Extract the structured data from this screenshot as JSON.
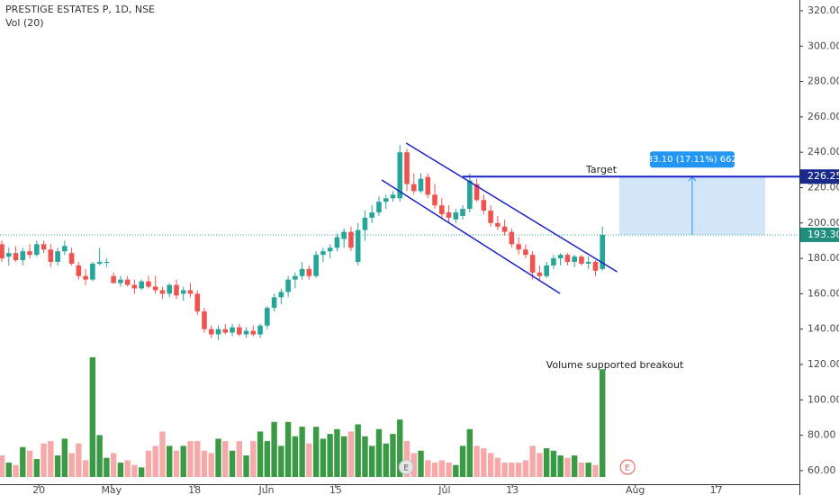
{
  "chart_data": {
    "type": "candlestick",
    "title": "PRESTIGE ESTATES P, 1D, NSE",
    "subtitle": "Vol (20)",
    "up_color": "#26a69a",
    "down_color": "#ef5350",
    "volume_up_color": "#3b9b45",
    "volume_down_color": "#f5a9a9",
    "open": [
      188,
      181,
      183,
      179,
      184,
      182,
      188,
      185,
      178,
      184,
      183,
      176,
      170,
      168,
      177,
      178,
      170,
      166,
      168,
      165,
      163,
      167,
      164,
      162,
      160,
      165,
      160,
      162,
      160,
      150,
      140,
      137,
      140,
      138,
      141,
      137,
      139,
      137,
      142,
      152,
      158,
      161,
      168,
      170,
      174,
      170,
      182,
      184,
      186,
      191,
      195,
      178,
      196,
      203,
      206,
      212,
      214,
      214,
      240,
      222,
      218,
      226,
      216,
      210,
      206,
      202,
      204,
      208,
      222,
      213,
      207,
      200,
      198,
      195,
      188,
      185,
      182,
      172,
      170,
      176,
      180,
      182,
      178,
      181,
      177,
      178,
      174
    ],
    "high": [
      190,
      186,
      187,
      186,
      188,
      190,
      190,
      188,
      186,
      190,
      186,
      178,
      174,
      178,
      186,
      180,
      172,
      170,
      170,
      168,
      168,
      170,
      170,
      164,
      166,
      168,
      164,
      166,
      162,
      152,
      142,
      142,
      143,
      143,
      143,
      141,
      142,
      143,
      153,
      160,
      163,
      170,
      172,
      178,
      176,
      184,
      186,
      188,
      194,
      197,
      198,
      200,
      207,
      210,
      215,
      216,
      218,
      244,
      242,
      228,
      228,
      228,
      222,
      214,
      210,
      208,
      210,
      228,
      225,
      216,
      210,
      204,
      202,
      197,
      192,
      188,
      184,
      176,
      178,
      182,
      183,
      183,
      182,
      182,
      181,
      179,
      198
    ],
    "low": [
      178,
      176,
      178,
      176,
      180,
      181,
      183,
      175,
      176,
      182,
      176,
      168,
      165,
      167,
      176,
      175,
      166,
      164,
      164,
      160,
      162,
      163,
      160,
      157,
      158,
      157,
      156,
      158,
      148,
      138,
      135,
      134,
      137,
      136,
      136,
      135,
      136,
      135,
      140,
      150,
      154,
      158,
      163,
      168,
      168,
      169,
      178,
      180,
      184,
      186,
      184,
      176,
      190,
      200,
      204,
      208,
      212,
      212,
      218,
      216,
      217,
      214,
      208,
      203,
      200,
      200,
      202,
      206,
      212,
      205,
      198,
      196,
      193,
      186,
      182,
      180,
      168,
      168,
      169,
      174,
      176,
      176,
      175,
      176,
      174,
      170,
      173
    ],
    "close": [
      180,
      183,
      179,
      184,
      182,
      188,
      185,
      178,
      184,
      187,
      177,
      170,
      168,
      177,
      178,
      178,
      166,
      168,
      165,
      163,
      167,
      164,
      162,
      160,
      165,
      159,
      162,
      160,
      150,
      140,
      137,
      140,
      138,
      141,
      137,
      139,
      137,
      142,
      152,
      158,
      161,
      168,
      170,
      174,
      170,
      182,
      184,
      186,
      192,
      195,
      186,
      196,
      203,
      206,
      212,
      214,
      216,
      240,
      222,
      218,
      225,
      216,
      210,
      205,
      203,
      206,
      208,
      224,
      213,
      207,
      200,
      198,
      195,
      188,
      185,
      182,
      172,
      170,
      176,
      180,
      182,
      178,
      181,
      177,
      178,
      173,
      193.3
    ],
    "volume": [
      18,
      12,
      10,
      25,
      22,
      15,
      28,
      30,
      18,
      32,
      20,
      28,
      14,
      100,
      35,
      16,
      20,
      12,
      14,
      10,
      8,
      22,
      26,
      38,
      26,
      22,
      26,
      30,
      30,
      22,
      20,
      32,
      30,
      22,
      30,
      18,
      30,
      38,
      30,
      46,
      26,
      46,
      34,
      42,
      28,
      42,
      32,
      36,
      40,
      34,
      38,
      44,
      34,
      26,
      40,
      28,
      36,
      48,
      30,
      20,
      22,
      14,
      12,
      14,
      12,
      10,
      26,
      40,
      26,
      24,
      20,
      16,
      12,
      12,
      12,
      14,
      26,
      20,
      24,
      22,
      18,
      16,
      18,
      12,
      12,
      10,
      90
    ],
    "volume_lim": [
      0,
      100
    ],
    "xlim": [
      -0.26,
      114.2
    ],
    "xticks": [
      {
        "value": 5.3,
        "label": "20"
      },
      {
        "value": 15.7,
        "label": "May"
      },
      {
        "value": 27.6,
        "label": "18"
      },
      {
        "value": 37.9,
        "label": "Jun"
      },
      {
        "value": 47.8,
        "label": "15"
      },
      {
        "value": 63.4,
        "label": "Jul"
      },
      {
        "value": 73.1,
        "label": "13"
      },
      {
        "value": 90.7,
        "label": "Aug"
      },
      {
        "value": 102.3,
        "label": "17"
      }
    ],
    "ylim": [
      52.3,
      326.1
    ],
    "yticks": [
      {
        "value": 320,
        "label": "320.00"
      },
      {
        "value": 300,
        "label": "300.00"
      },
      {
        "value": 280,
        "label": "280.00"
      },
      {
        "value": 260,
        "label": "260.00"
      },
      {
        "value": 240,
        "label": "240.00"
      },
      {
        "value": 220,
        "label": "220.00"
      },
      {
        "value": 200,
        "label": "200.00"
      },
      {
        "value": 180,
        "label": "180.00"
      },
      {
        "value": 160,
        "label": "160.00"
      },
      {
        "value": 140,
        "label": "140.00"
      },
      {
        "value": 120,
        "label": "120.00"
      },
      {
        "value": 100,
        "label": "100.00"
      },
      {
        "value": 80,
        "label": "80.00"
      },
      {
        "value": 60,
        "label": "60.00"
      }
    ],
    "trend_color": "#1a22c8",
    "trend_lines": [
      {
        "x": [
          57.9,
          88.1
        ],
        "y": [
          245.2,
          172.4
        ]
      },
      {
        "x": [
          54.4,
          79.9
        ],
        "y": [
          224.3,
          160.2
        ]
      }
    ],
    "target": {
      "label": "Target",
      "price": 226.25,
      "x_start": 66
    },
    "last_price": {
      "value": 193.3,
      "label": "193.30"
    },
    "measure": {
      "label": "33.10 (17.11%) 662",
      "x": [
        88.4,
        109.3
      ]
    },
    "annotation": "Volume supported breakout",
    "event_markers": [
      {
        "x": 57.9,
        "label": "E"
      },
      {
        "x": 89.6,
        "label": "E"
      }
    ]
  }
}
